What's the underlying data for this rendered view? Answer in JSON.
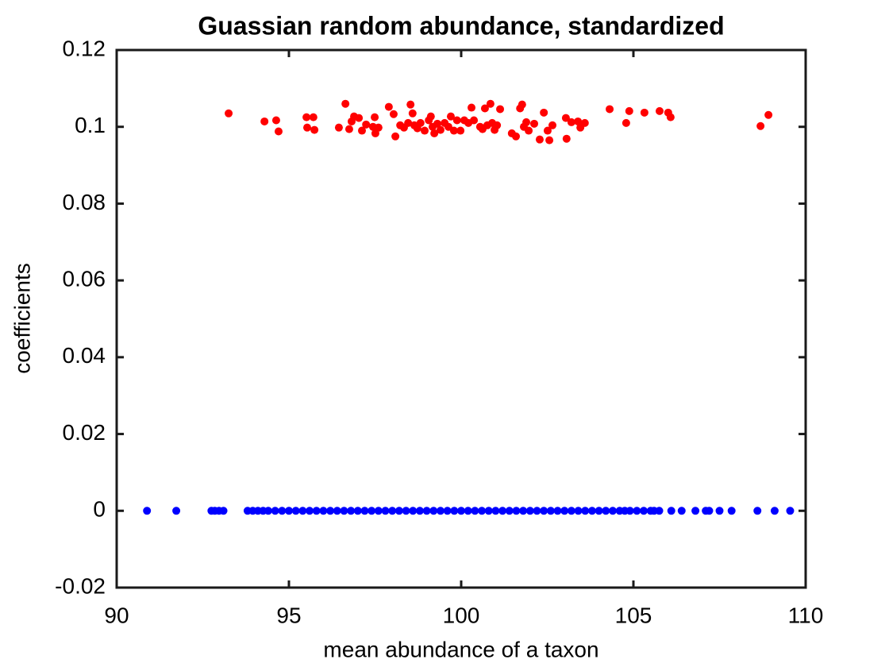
{
  "chart_data": {
    "type": "scatter",
    "title": "Guassian random abundance, standardized",
    "x_label": "mean abundance of a taxon",
    "y_label": "coefficients",
    "xlim": [
      90,
      110
    ],
    "xticks": [
      90,
      95,
      100,
      105,
      110
    ],
    "ylim": [
      -0.02,
      0.12
    ],
    "yticks": [
      -0.02,
      0,
      0.02,
      0.04,
      0.06,
      0.08,
      0.1,
      0.12
    ],
    "series": [
      {
        "color": "#ff0000",
        "x": [
          93.25,
          94.29,
          94.63,
          94.7,
          95.51,
          95.53,
          95.71,
          95.74,
          96.45,
          96.64,
          96.75,
          96.82,
          96.89,
          97.03,
          97.12,
          97.24,
          97.44,
          97.49,
          97.51,
          97.6,
          97.9,
          98.04,
          98.09,
          98.23,
          98.34,
          98.46,
          98.53,
          98.59,
          98.64,
          98.73,
          98.82,
          98.94,
          99.06,
          99.12,
          99.17,
          99.22,
          99.31,
          99.4,
          99.52,
          99.63,
          99.7,
          99.79,
          99.88,
          99.98,
          100.09,
          100.21,
          100.3,
          100.37,
          100.55,
          100.62,
          100.69,
          100.76,
          100.85,
          100.9,
          100.97,
          101.04,
          101.13,
          101.47,
          101.59,
          101.71,
          101.77,
          101.82,
          101.89,
          101.96,
          102.12,
          102.28,
          102.4,
          102.51,
          102.56,
          102.65,
          103.06,
          103.04,
          103.2,
          103.39,
          103.46,
          103.59,
          104.31,
          104.79,
          104.88,
          105.32,
          105.76,
          106.01,
          106.08,
          108.69,
          108.92
        ],
        "values": [
          0.1035,
          0.1014,
          0.1017,
          0.0988,
          0.1025,
          0.0998,
          0.1025,
          0.0992,
          0.0998,
          0.106,
          0.0994,
          0.1014,
          0.1027,
          0.1023,
          0.099,
          0.1006,
          0.1,
          0.1025,
          0.0983,
          0.0998,
          0.1052,
          0.1033,
          0.0975,
          0.1004,
          0.0998,
          0.101,
          0.1058,
          0.1035,
          0.1004,
          0.0996,
          0.101,
          0.099,
          0.1017,
          0.1027,
          0.1,
          0.0983,
          0.1008,
          0.0992,
          0.101,
          0.1,
          0.1027,
          0.099,
          0.1017,
          0.099,
          0.1017,
          0.101,
          0.105,
          0.1017,
          0.1,
          0.0994,
          0.1048,
          0.1004,
          0.106,
          0.101,
          0.0992,
          0.1004,
          0.1046,
          0.0983,
          0.0975,
          0.1048,
          0.1058,
          0.1,
          0.1012,
          0.099,
          0.1008,
          0.0967,
          0.1037,
          0.099,
          0.0965,
          0.1004,
          0.0969,
          0.1023,
          0.1012,
          0.1014,
          0.0998,
          0.101,
          0.1046,
          0.101,
          0.1041,
          0.1037,
          0.1041,
          0.1037,
          0.1025,
          0.1002,
          0.1031
        ]
      },
      {
        "color": "#0000ff",
        "x": [
          90.88,
          91.73,
          92.75,
          92.85,
          92.97,
          93.1,
          93.8,
          93.95,
          94.1,
          94.25,
          94.4,
          94.6,
          94.8,
          95,
          95.2,
          95.4,
          95.6,
          95.8,
          96,
          96.2,
          96.4,
          96.6,
          96.8,
          97,
          97.2,
          97.4,
          97.6,
          97.8,
          98,
          98.2,
          98.4,
          98.6,
          98.8,
          99,
          99.2,
          99.4,
          99.6,
          99.8,
          100,
          100.2,
          100.4,
          100.6,
          100.8,
          101,
          101.2,
          101.4,
          101.6,
          101.8,
          102,
          102.2,
          102.4,
          102.6,
          102.8,
          103,
          103.2,
          103.4,
          103.6,
          103.8,
          104,
          104.2,
          104.4,
          104.6,
          104.75,
          104.9,
          105.1,
          105.3,
          105.5,
          105.6,
          105.75,
          106.1,
          106.4,
          106.8,
          107.1,
          107.2,
          107.5,
          107.85,
          108.6,
          109.1,
          109.55
        ],
        "values": [
          0,
          0,
          0,
          0,
          0,
          0,
          0,
          0,
          0,
          0,
          0,
          0,
          0,
          0,
          0,
          0,
          0,
          0,
          0,
          0,
          0,
          0,
          0,
          0,
          0,
          0,
          0,
          0,
          0,
          0,
          0,
          0,
          0,
          0,
          0,
          0,
          0,
          0,
          0,
          0,
          0,
          0,
          0,
          0,
          0,
          0,
          0,
          0,
          0,
          0,
          0,
          0,
          0,
          0,
          0,
          0,
          0,
          0,
          0,
          0,
          0,
          0,
          0,
          0,
          0,
          0,
          0,
          0,
          0,
          0,
          0,
          0,
          0,
          0,
          0,
          0,
          0,
          0,
          0
        ]
      }
    ]
  }
}
